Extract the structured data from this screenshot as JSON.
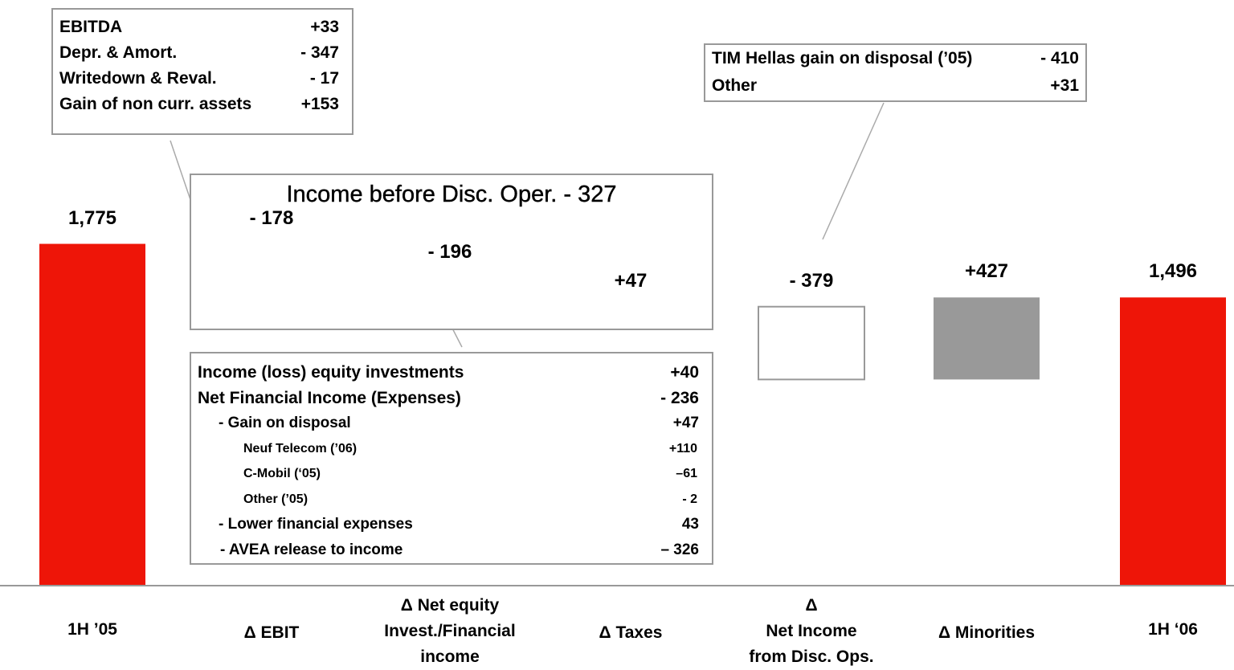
{
  "chart_data": {
    "type": "waterfall",
    "categories": [
      "1H ’05",
      "Δ EBIT",
      "Δ Net equity\nInvest./Financial\nincome",
      "Δ Taxes",
      "Δ\nNet Income\nfrom Disc. Ops.",
      "Δ Minorities",
      "1H ‘06"
    ],
    "values": [
      1775,
      -178,
      -196,
      47,
      -379,
      427,
      1496
    ],
    "value_labels": [
      "1,775",
      "- 178",
      "- 196",
      "+47",
      "- 379",
      "+427",
      "1,496"
    ],
    "totals": [
      true,
      false,
      false,
      false,
      false,
      false,
      true
    ],
    "colors": [
      "#ee1508",
      "#ffffff",
      "#ffffff",
      "#999999",
      "#ffffff",
      "#999999",
      "#ee1508"
    ],
    "ylim": [
      0,
      1800
    ]
  },
  "annotations": {
    "ebit_box": [
      [
        "EBITDA",
        "+33"
      ],
      [
        "Depr. & Amort.",
        "- 347"
      ],
      [
        "Writedown & Reval.",
        "- 17"
      ],
      [
        "Gain of non curr. assets",
        "+153"
      ]
    ],
    "group_title": "Income before Disc. Oper. - 327",
    "financial_box": [
      [
        "Income (loss) equity investments",
        "+40"
      ],
      [
        "Net Financial Income (Expenses)",
        "- 236"
      ],
      [
        "- Gain on disposal",
        "+47"
      ],
      [
        "Neuf Telecom (’06)",
        "+110"
      ],
      [
        "C-Mobil (‘05)",
        "–61"
      ],
      [
        "Other (’05)",
        "- 2"
      ],
      [
        "- Lower financial expenses",
        "43"
      ],
      [
        "- AVEA release to income",
        "– 326"
      ]
    ],
    "disc_box": [
      [
        "TIM Hellas gain on disposal (’05)",
        "- 410"
      ],
      [
        "Other",
        "+31"
      ]
    ]
  }
}
